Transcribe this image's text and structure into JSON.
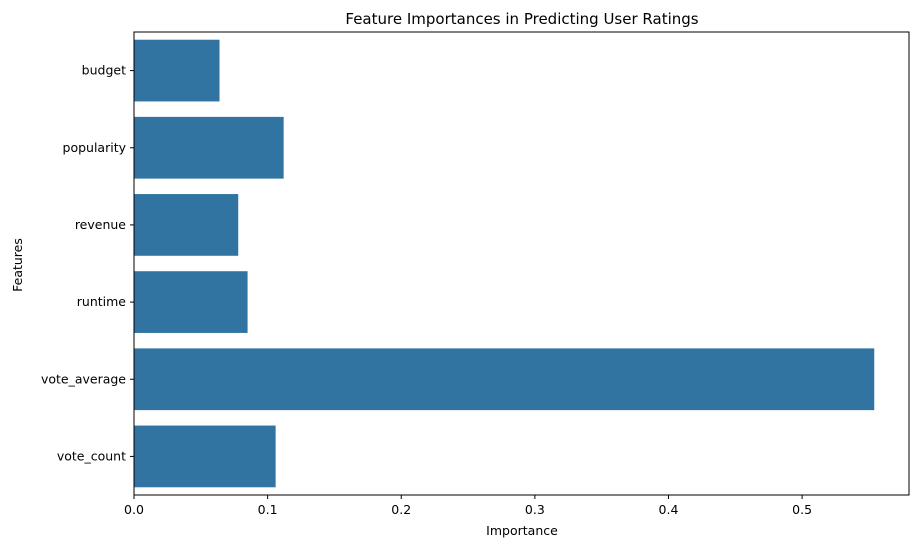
{
  "chart_data": {
    "type": "bar",
    "orientation": "horizontal",
    "title": "Feature Importances in Predicting User Ratings",
    "xlabel": "Importance",
    "ylabel": "Features",
    "categories": [
      "budget",
      "popularity",
      "revenue",
      "runtime",
      "vote_average",
      "vote_count"
    ],
    "values": [
      0.064,
      0.112,
      0.078,
      0.085,
      0.554,
      0.106
    ],
    "xlim": [
      0,
      0.58
    ],
    "xticks": [
      0.0,
      0.1,
      0.2,
      0.3,
      0.4,
      0.5
    ],
    "xtick_labels": [
      "0.0",
      "0.1",
      "0.2",
      "0.3",
      "0.4",
      "0.5"
    ],
    "grid": false,
    "legend": "none",
    "bar_color": "#3274a1"
  }
}
